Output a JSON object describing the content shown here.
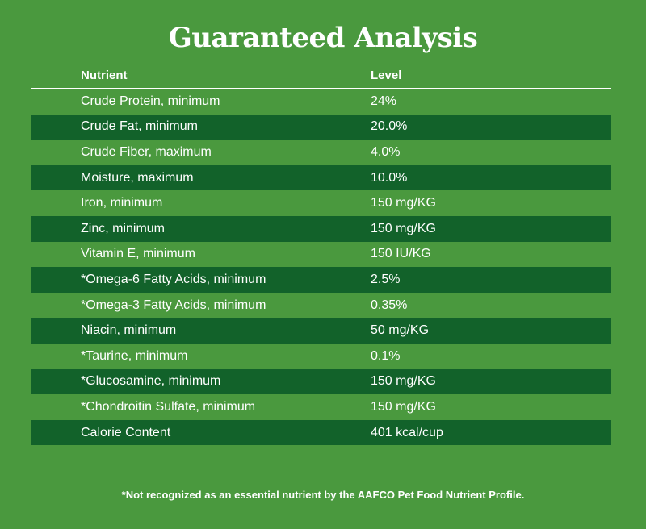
{
  "title": "Guaranteed Analysis",
  "table": {
    "headers": {
      "nutrient": "Nutrient",
      "level": "Level"
    },
    "rows": [
      {
        "nutrient": "Crude Protein, minimum",
        "level": "24%"
      },
      {
        "nutrient": "Crude Fat, minimum",
        "level": "20.0%"
      },
      {
        "nutrient": "Crude Fiber, maximum",
        "level": "4.0%"
      },
      {
        "nutrient": "Moisture, maximum",
        "level": "10.0%"
      },
      {
        "nutrient": "Iron, minimum",
        "level": "150 mg/KG"
      },
      {
        "nutrient": "Zinc, minimum",
        "level": "150 mg/KG"
      },
      {
        "nutrient": "Vitamin E, minimum",
        "level": "150 IU/KG"
      },
      {
        "nutrient": "*Omega-6 Fatty Acids, minimum",
        "level": "2.5%"
      },
      {
        "nutrient": "*Omega-3 Fatty Acids, minimum",
        "level": "0.35%"
      },
      {
        "nutrient": "Niacin, minimum",
        "level": "50 mg/KG"
      },
      {
        "nutrient": "*Taurine, minimum",
        "level": "0.1%"
      },
      {
        "nutrient": "*Glucosamine, minimum",
        "level": "150 mg/KG"
      },
      {
        "nutrient": "*Chondroitin Sulfate, minimum",
        "level": "150 mg/KG"
      },
      {
        "nutrient": "Calorie Content",
        "level": "401 kcal/cup"
      }
    ]
  },
  "footnote": "*Not recognized as an essential nutrient by the AAFCO Pet Food Nutrient Profile.",
  "colors": {
    "background": "#4a993e",
    "row_dark": "#12622a",
    "text": "#ffffff"
  }
}
